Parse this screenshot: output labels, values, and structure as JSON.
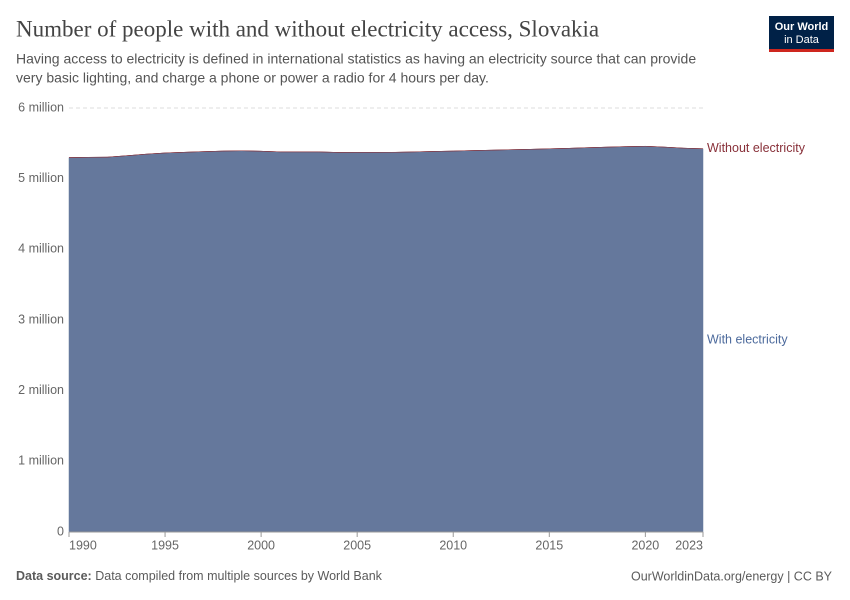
{
  "chart_data": {
    "type": "stacked_area",
    "title": "Number of people with and without electricity access, Slovakia",
    "subtitle": [
      "Having access to electricity is defined in international statistics as having an electricity source that can provide",
      "very basic lighting, and charge a phone or power a radio for 4 hours per day."
    ],
    "logo": [
      "Our World",
      "in Data"
    ],
    "source_label": "Data source:",
    "source": "Data compiled from multiple sources by World Bank",
    "credit": "OurWorldinData.org/energy | CC BY",
    "x": [
      1990,
      1991,
      1992,
      1993,
      1994,
      1995,
      1996,
      1997,
      1998,
      1999,
      2000,
      2001,
      2002,
      2003,
      2004,
      2005,
      2006,
      2007,
      2008,
      2009,
      2010,
      2011,
      2012,
      2013,
      2014,
      2015,
      2016,
      2017,
      2018,
      2019,
      2020,
      2021,
      2022,
      2023
    ],
    "series": [
      {
        "name": "With electricity",
        "color": "#65789c",
        "label_color": "#4c6a9c",
        "values": [
          5299000,
          5303000,
          5305000,
          5325000,
          5347000,
          5364000,
          5374000,
          5383000,
          5391000,
          5395000,
          5389000,
          5379000,
          5379000,
          5379000,
          5372000,
          5373000,
          5373000,
          5374000,
          5379000,
          5386000,
          5391000,
          5398000,
          5404000,
          5410000,
          5416000,
          5423000,
          5430000,
          5439000,
          5447000,
          5454000,
          5459000,
          5447000,
          5432000,
          5424000
        ]
      },
      {
        "name": "Without electricity",
        "color": "#883039",
        "label_color": "#883039",
        "values": [
          0,
          0,
          0,
          0,
          0,
          0,
          0,
          0,
          0,
          0,
          0,
          0,
          0,
          0,
          0,
          0,
          0,
          0,
          0,
          0,
          0,
          0,
          0,
          0,
          0,
          0,
          0,
          0,
          0,
          0,
          0,
          0,
          0,
          0
        ]
      }
    ],
    "xlim": [
      1990,
      2023
    ],
    "xticks": [
      1990,
      1995,
      2000,
      2005,
      2010,
      2015,
      2020,
      2023
    ],
    "ylim": [
      0,
      6000000
    ],
    "yticks": [
      0,
      {
        "value": 1000000,
        "label": "1 million"
      },
      {
        "value": 2000000,
        "label": "2 million"
      },
      {
        "value": 3000000,
        "label": "3 million"
      },
      {
        "value": 4000000,
        "label": "4 million"
      },
      {
        "value": 5000000,
        "label": "5 million"
      },
      {
        "value": 6000000,
        "label": "6 million"
      }
    ],
    "grid": true
  }
}
